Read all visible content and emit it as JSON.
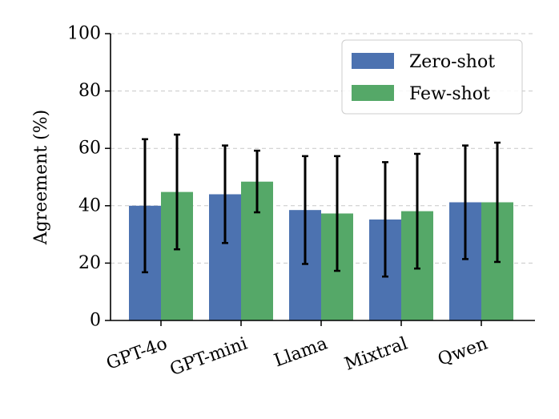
{
  "chart_data": {
    "type": "bar",
    "title": "",
    "xlabel": "",
    "ylabel": "Agreement (%)",
    "ylim": [
      0,
      100
    ],
    "yticks": [
      0,
      20,
      40,
      60,
      80,
      100
    ],
    "grid": "horizontal dashed",
    "legend_position": "top-right",
    "categories": [
      "GPT-4o",
      "GPT-mini",
      "Llama",
      "Mixtral",
      "Qwen"
    ],
    "series": [
      {
        "name": "Zero-shot",
        "color": "#4C72B0",
        "values": [
          40.0,
          44.0,
          38.5,
          35.2,
          41.2
        ],
        "error_low": [
          16.8,
          27.0,
          19.7,
          15.3,
          21.4
        ],
        "error_high": [
          63.2,
          61.0,
          57.3,
          55.2,
          61.0
        ]
      },
      {
        "name": "Few-shot",
        "color": "#55A868",
        "values": [
          44.8,
          48.4,
          37.3,
          38.1,
          41.2
        ],
        "error_low": [
          24.8,
          37.7,
          17.3,
          18.1,
          20.4
        ],
        "error_high": [
          64.8,
          59.2,
          57.3,
          58.1,
          62.0
        ]
      }
    ]
  }
}
